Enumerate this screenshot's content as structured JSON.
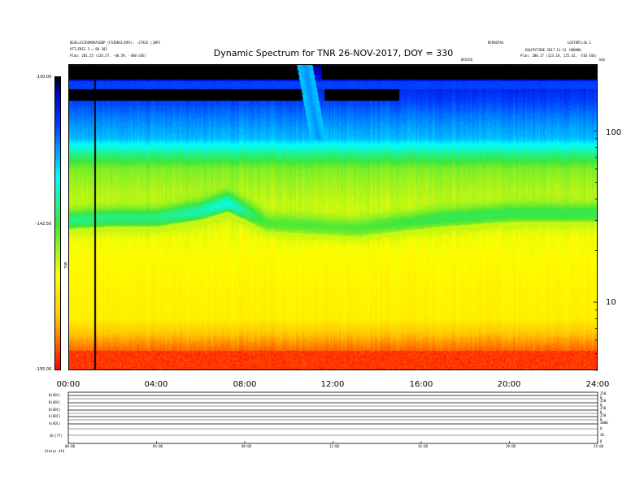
{
  "header": {
    "title": "Dynamic Spectrum for TNR 26-NOV-2017, DOY = 330",
    "left_line1": "BGSE=SCIDOMSPACEBP (FGIRRSI|RPS): -27922 ||BP3",
    "left_line2": "ATT=FRSI 3 = 88 302",
    "left_line3": "Plan:   201.25 (126.57, -40.59, -480 GSE)",
    "right_line1": "NYROOTAG",
    "right_line2": "LOSTORT=10.1",
    "right_line3": "EQLPICTURE  2017-11-21 (00000)",
    "right_line4": "Plan:   200.17 (123.10, 225.42, -510 GSE)",
    "mid_label": "DEVICE",
    "corner_label": "kHz"
  },
  "colorbar": {
    "top_label": "-130.00",
    "mid_label": "-142.50",
    "bottom_label": "-155.00",
    "side_label": "TNR"
  },
  "y_axis": {
    "ticks": [
      "100",
      "10"
    ]
  },
  "x_axis": {
    "ticks": [
      "00:00",
      "04:00",
      "08:00",
      "12:00",
      "16:00",
      "20:00",
      "24:00"
    ]
  },
  "bottom_panels": {
    "row_labels": [
      "B(ADC)",
      "B(ADC)",
      "B(ADC)",
      "A(ADC)",
      "A(ADC)",
      "|B|(fT)"
    ],
    "right_labels": [
      "250",
      "0",
      "250",
      "0",
      "250",
      "0",
      "250",
      "0",
      "3000",
      "0",
      "30",
      "0"
    ],
    "time_ticks": [
      "00:00",
      "04:00",
      "08:00",
      "12:00",
      "16:00",
      "20:00",
      "24:00"
    ],
    "footer": "Status   dfd"
  },
  "chart_data": {
    "type": "heatmap",
    "title": "Dynamic Spectrum for TNR 26-NOV-2017, DOY = 330",
    "xlabel": "",
    "ylabel": "kHz",
    "x_range": [
      "00:00",
      "24:00"
    ],
    "y_range_khz": [
      4,
      245
    ],
    "y_scale": "log",
    "colorbar_range": [
      -155,
      -130
    ],
    "colorbar_ticks": [
      -130.0,
      -142.5,
      -155.0
    ],
    "x_ticks": [
      "00:00",
      "04:00",
      "08:00",
      "12:00",
      "16:00",
      "20:00",
      "24:00"
    ],
    "y_ticks": [
      100,
      10
    ],
    "data_gap_time": "01:10",
    "emission_band_khz_by_hour": [
      {
        "hour": 0,
        "center_khz": 30,
        "level_db": -141
      },
      {
        "hour": 2,
        "center_khz": 31,
        "level_db": -141
      },
      {
        "hour": 4,
        "center_khz": 31,
        "level_db": -141
      },
      {
        "hour": 6,
        "center_khz": 34,
        "level_db": -140
      },
      {
        "hour": 7.2,
        "center_khz": 38,
        "level_db": -139
      },
      {
        "hour": 9,
        "center_khz": 29,
        "level_db": -143
      },
      {
        "hour": 13,
        "center_khz": 27,
        "level_db": -143
      },
      {
        "hour": 17,
        "center_khz": 31,
        "level_db": -142
      },
      {
        "hour": 20,
        "center_khz": 33,
        "level_db": -142
      },
      {
        "hour": 24,
        "center_khz": 33,
        "level_db": -142
      }
    ],
    "background_levels_db": [
      {
        "khz": 240,
        "level_db": -131
      },
      {
        "khz": 150,
        "level_db": -134
      },
      {
        "khz": 90,
        "level_db": -137
      },
      {
        "khz": 60,
        "level_db": -144
      },
      {
        "khz": 20,
        "level_db": -147
      },
      {
        "khz": 8,
        "level_db": -148
      },
      {
        "khz": 5,
        "level_db": -153
      }
    ],
    "colors": {
      "low": "#ff0000",
      "mid_low": "#ffff00",
      "mid": "#40e040",
      "mid_high": "#00ffff",
      "high": "#0000ff",
      "max": "#000000"
    }
  }
}
